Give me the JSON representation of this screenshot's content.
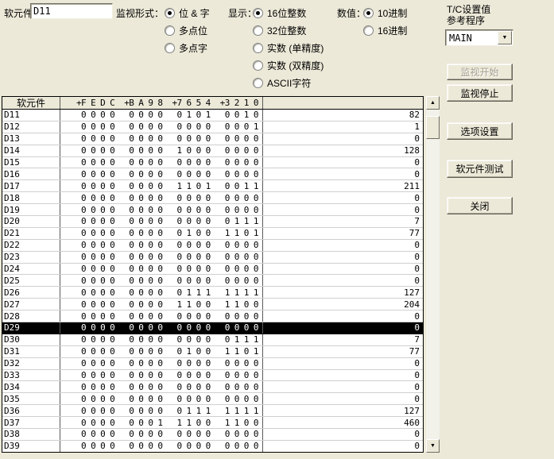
{
  "form": {
    "device_label": "软元件：",
    "device_value": "D11",
    "monitor_format": {
      "label": "监视形式：",
      "options": [
        {
          "label": "位 & 字",
          "selected": true
        },
        {
          "label": "多点位",
          "selected": false
        },
        {
          "label": "多点字",
          "selected": false
        }
      ]
    },
    "display": {
      "label": "显示：",
      "options": [
        {
          "label": "16位整数",
          "selected": true
        },
        {
          "label": "32位整数",
          "selected": false
        },
        {
          "label": "实数 (单精度)",
          "selected": false
        },
        {
          "label": "实数 (双精度)",
          "selected": false
        },
        {
          "label": "ASCII字符",
          "selected": false
        }
      ]
    },
    "value_format": {
      "label": "数值：",
      "options": [
        {
          "label": "10进制",
          "selected": true
        },
        {
          "label": "16进制",
          "selected": false
        }
      ]
    },
    "tc_reference": {
      "label_line1": "T/C设置值",
      "label_line2": "参考程序",
      "selected": "MAIN"
    }
  },
  "buttons": [
    {
      "label": "监视开始",
      "enabled": false
    },
    {
      "label": "监视停止",
      "enabled": true
    },
    {
      "label": "选项设置",
      "enabled": true
    },
    {
      "label": "软元件测试",
      "enabled": true
    },
    {
      "label": "关闭",
      "enabled": true
    }
  ],
  "icons": {
    "combo_arrow": "▼",
    "scroll_up": "▲",
    "scroll_down": "▼"
  },
  "colors": {
    "window_background": "#ece9d8",
    "table_background": "#ffffff",
    "highlight_background": "#000000",
    "highlight_text": "#ffffff",
    "disabled_text": "#a39e8d"
  },
  "table": {
    "device_header": "软元件",
    "bit_headers": [
      "+F E D C",
      "+B A 9 8",
      "+7 6 5 4",
      "+3 2 1 0"
    ],
    "rows": [
      {
        "device": "D11",
        "bits": [
          "0000",
          "0000",
          "0101",
          "0010"
        ],
        "value": "82",
        "selected": false
      },
      {
        "device": "D12",
        "bits": [
          "0000",
          "0000",
          "0000",
          "0001"
        ],
        "value": "1",
        "selected": false
      },
      {
        "device": "D13",
        "bits": [
          "0000",
          "0000",
          "0000",
          "0000"
        ],
        "value": "0",
        "selected": false
      },
      {
        "device": "D14",
        "bits": [
          "0000",
          "0000",
          "1000",
          "0000"
        ],
        "value": "128",
        "selected": false
      },
      {
        "device": "D15",
        "bits": [
          "0000",
          "0000",
          "0000",
          "0000"
        ],
        "value": "0",
        "selected": false
      },
      {
        "device": "D16",
        "bits": [
          "0000",
          "0000",
          "0000",
          "0000"
        ],
        "value": "0",
        "selected": false
      },
      {
        "device": "D17",
        "bits": [
          "0000",
          "0000",
          "1101",
          "0011"
        ],
        "value": "211",
        "selected": false
      },
      {
        "device": "D18",
        "bits": [
          "0000",
          "0000",
          "0000",
          "0000"
        ],
        "value": "0",
        "selected": false
      },
      {
        "device": "D19",
        "bits": [
          "0000",
          "0000",
          "0000",
          "0000"
        ],
        "value": "0",
        "selected": false
      },
      {
        "device": "D20",
        "bits": [
          "0000",
          "0000",
          "0000",
          "0111"
        ],
        "value": "7",
        "selected": false
      },
      {
        "device": "D21",
        "bits": [
          "0000",
          "0000",
          "0100",
          "1101"
        ],
        "value": "77",
        "selected": false
      },
      {
        "device": "D22",
        "bits": [
          "0000",
          "0000",
          "0000",
          "0000"
        ],
        "value": "0",
        "selected": false
      },
      {
        "device": "D23",
        "bits": [
          "0000",
          "0000",
          "0000",
          "0000"
        ],
        "value": "0",
        "selected": false
      },
      {
        "device": "D24",
        "bits": [
          "0000",
          "0000",
          "0000",
          "0000"
        ],
        "value": "0",
        "selected": false
      },
      {
        "device": "D25",
        "bits": [
          "0000",
          "0000",
          "0000",
          "0000"
        ],
        "value": "0",
        "selected": false
      },
      {
        "device": "D26",
        "bits": [
          "0000",
          "0000",
          "0111",
          "1111"
        ],
        "value": "127",
        "selected": false
      },
      {
        "device": "D27",
        "bits": [
          "0000",
          "0000",
          "1100",
          "1100"
        ],
        "value": "204",
        "selected": false
      },
      {
        "device": "D28",
        "bits": [
          "0000",
          "0000",
          "0000",
          "0000"
        ],
        "value": "0",
        "selected": false
      },
      {
        "device": "D29",
        "bits": [
          "0000",
          "0000",
          "0000",
          "0000"
        ],
        "value": "0",
        "selected": true
      },
      {
        "device": "D30",
        "bits": [
          "0000",
          "0000",
          "0000",
          "0111"
        ],
        "value": "7",
        "selected": false
      },
      {
        "device": "D31",
        "bits": [
          "0000",
          "0000",
          "0100",
          "1101"
        ],
        "value": "77",
        "selected": false
      },
      {
        "device": "D32",
        "bits": [
          "0000",
          "0000",
          "0000",
          "0000"
        ],
        "value": "0",
        "selected": false
      },
      {
        "device": "D33",
        "bits": [
          "0000",
          "0000",
          "0000",
          "0000"
        ],
        "value": "0",
        "selected": false
      },
      {
        "device": "D34",
        "bits": [
          "0000",
          "0000",
          "0000",
          "0000"
        ],
        "value": "0",
        "selected": false
      },
      {
        "device": "D35",
        "bits": [
          "0000",
          "0000",
          "0000",
          "0000"
        ],
        "value": "0",
        "selected": false
      },
      {
        "device": "D36",
        "bits": [
          "0000",
          "0000",
          "0111",
          "1111"
        ],
        "value": "127",
        "selected": false
      },
      {
        "device": "D37",
        "bits": [
          "0000",
          "0001",
          "1100",
          "1100"
        ],
        "value": "460",
        "selected": false
      },
      {
        "device": "D38",
        "bits": [
          "0000",
          "0000",
          "0000",
          "0000"
        ],
        "value": "0",
        "selected": false
      },
      {
        "device": "D39",
        "bits": [
          "0000",
          "0000",
          "0000",
          "0000"
        ],
        "value": "0",
        "selected": false
      }
    ]
  }
}
